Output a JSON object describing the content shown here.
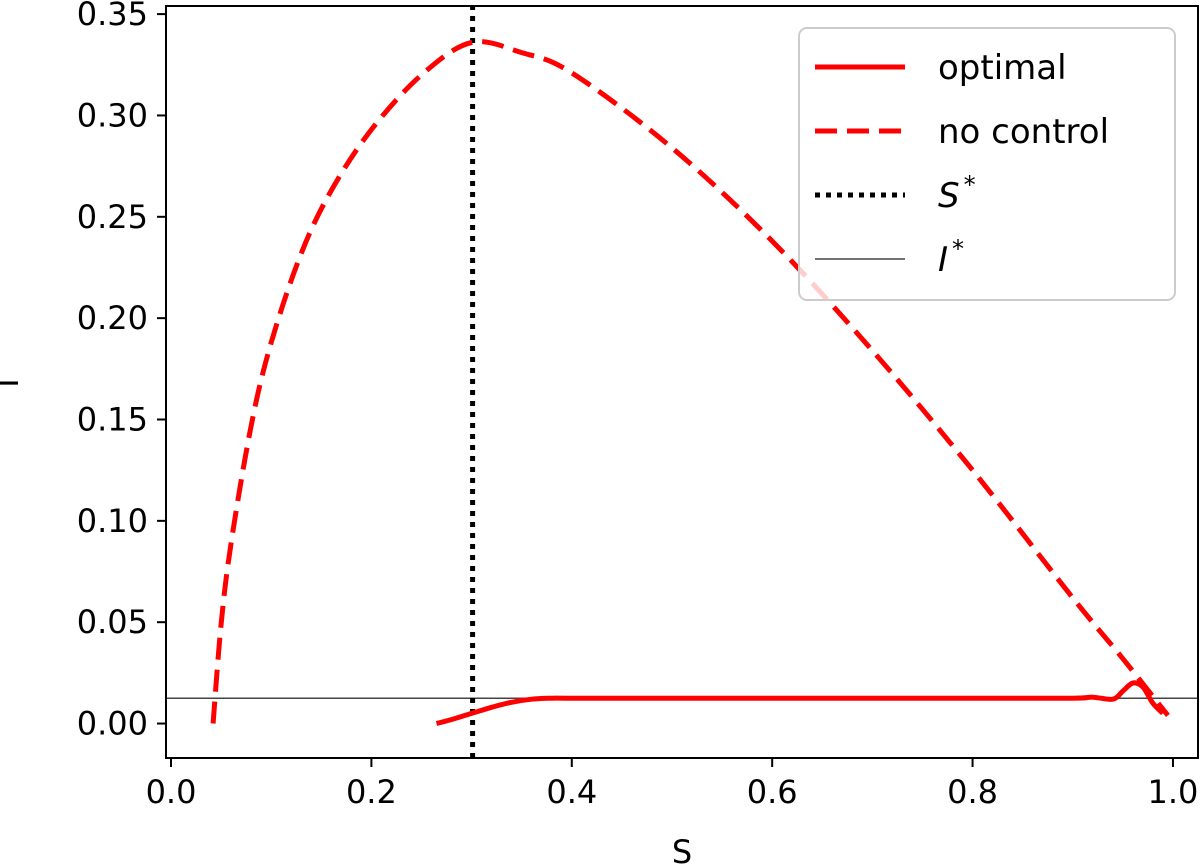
{
  "chart_data": {
    "type": "line",
    "title": "",
    "xlabel": "S",
    "ylabel": "I",
    "xlim": [
      -0.005,
      1.025
    ],
    "ylim": [
      -0.017,
      0.354
    ],
    "xticks": [
      0.0,
      0.2,
      0.4,
      0.6,
      0.8,
      1.0
    ],
    "xtick_labels": [
      "0.0",
      "0.2",
      "0.4",
      "0.6",
      "0.8",
      "1.0"
    ],
    "yticks": [
      0.0,
      0.05,
      0.1,
      0.15,
      0.2,
      0.25,
      0.3,
      0.35
    ],
    "ytick_labels": [
      "0.00",
      "0.05",
      "0.10",
      "0.15",
      "0.20",
      "0.25",
      "0.30",
      "0.35"
    ],
    "grid": false,
    "legend_position": "top-right",
    "series": [
      {
        "name": "optimal",
        "color": "#ff0000",
        "style": "solid",
        "x": [
          0.265,
          0.28,
          0.3,
          0.32,
          0.34,
          0.36,
          0.38,
          0.4,
          0.5,
          0.6,
          0.7,
          0.8,
          0.9,
          0.92,
          0.94,
          0.95,
          0.96,
          0.97,
          0.98,
          0.99
        ],
        "y": [
          0.0,
          0.002,
          0.005,
          0.008,
          0.0105,
          0.012,
          0.0125,
          0.0125,
          0.0125,
          0.0125,
          0.0125,
          0.0125,
          0.0125,
          0.013,
          0.012,
          0.016,
          0.02,
          0.018,
          0.01,
          0.005
        ]
      },
      {
        "name": "no control",
        "color": "#ff0000",
        "style": "dashed",
        "x": [
          0.042,
          0.05,
          0.06,
          0.08,
          0.1,
          0.13,
          0.16,
          0.2,
          0.25,
          0.3,
          0.35,
          0.4,
          0.5,
          0.6,
          0.7,
          0.8,
          0.9,
          0.95,
          0.995
        ],
        "y": [
          0.0,
          0.049,
          0.089,
          0.147,
          0.188,
          0.232,
          0.263,
          0.293,
          0.32,
          0.336,
          0.331,
          0.321,
          0.284,
          0.238,
          0.184,
          0.125,
          0.062,
          0.032,
          0.004
        ]
      },
      {
        "name": "S*",
        "color": "#000000",
        "style": "dotted",
        "x": [
          0.301,
          0.301
        ],
        "y": [
          -0.017,
          0.354
        ]
      },
      {
        "name": "I*",
        "color": "#444444",
        "style": "thin",
        "x": [
          -0.005,
          1.025
        ],
        "y": [
          0.0125,
          0.0125
        ]
      }
    ],
    "legend": [
      {
        "label": "optimal",
        "style": "solid",
        "color": "#ff0000"
      },
      {
        "label": "no control",
        "style": "dashed",
        "color": "#ff0000"
      },
      {
        "label": "S",
        "superscript": "*",
        "style": "dotted",
        "color": "#000000",
        "math": true
      },
      {
        "label": "I",
        "superscript": "*",
        "style": "thin",
        "color": "#444444",
        "math": true
      }
    ]
  }
}
